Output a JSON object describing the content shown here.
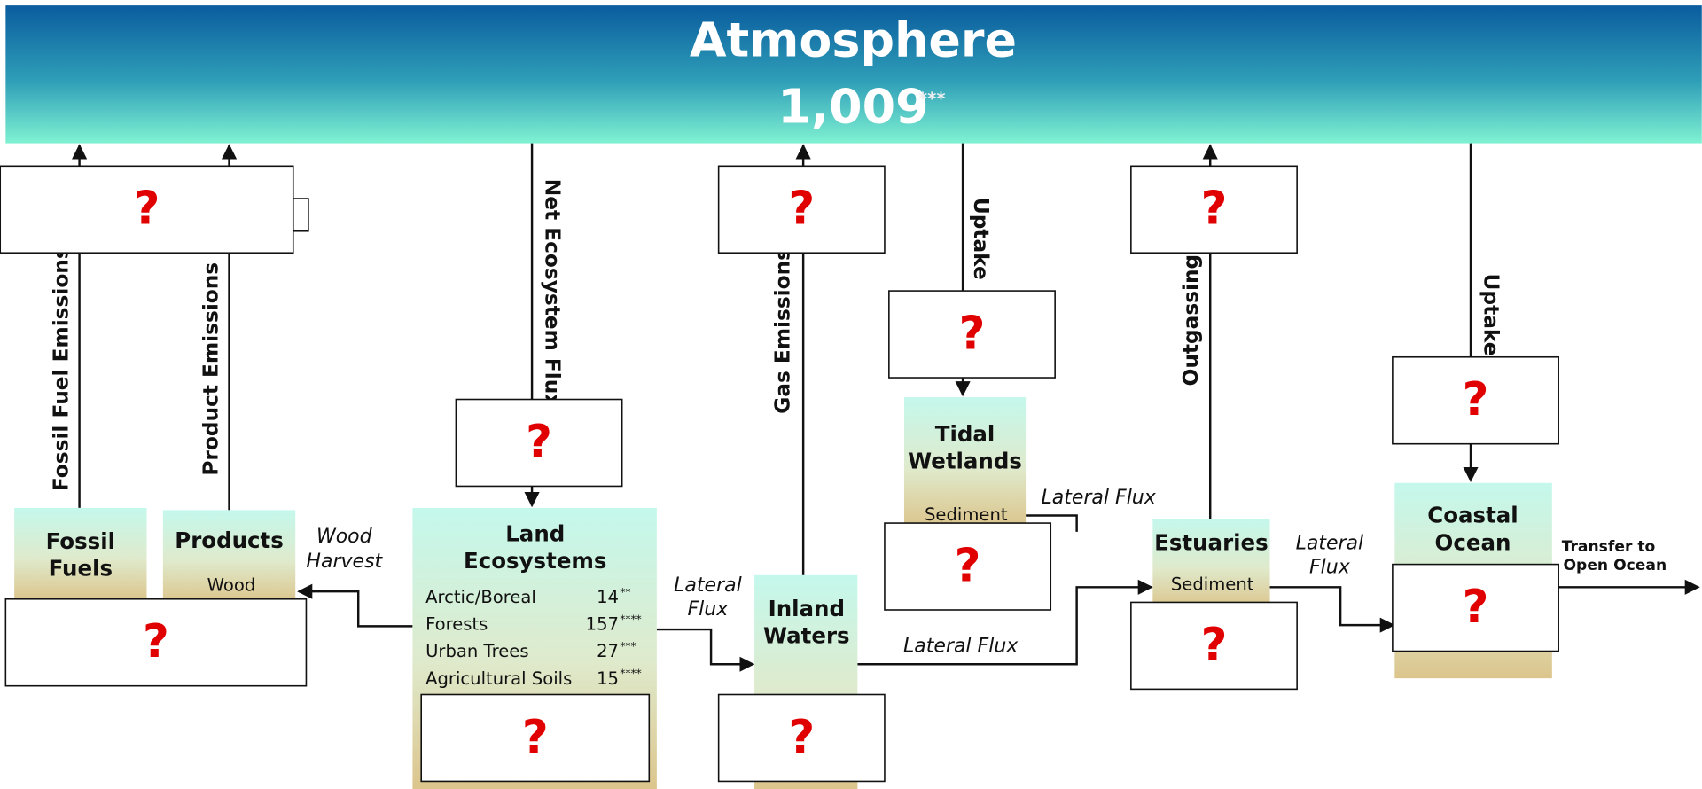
{
  "atmosphere": {
    "title": "Atmosphere",
    "value": "1,009",
    "note": "***"
  },
  "fluxes": {
    "fossil_fuel_emissions": "Fossil Fuel Emissions",
    "product_emissions": "Product Emissions",
    "net_ecosystem_flux": "Net Ecosystem Flux",
    "gas_emissions": "Gas Emissions",
    "wetland_uptake": "Uptake",
    "outgassing": "Outgassing",
    "ocean_uptake": "Uptake",
    "wood_harvest": [
      "Wood",
      "Harvest"
    ],
    "lateral_flux_land": [
      "Lateral",
      "Flux"
    ],
    "lateral_flux_inland": "Lateral Flux",
    "lateral_flux_wetlands": "Lateral Flux",
    "lateral_flux_estuaries": [
      "Lateral",
      "Flux"
    ],
    "transfer": [
      "Transfer to",
      "Open Ocean"
    ]
  },
  "nodes": {
    "fossil_fuels": [
      "Fossil",
      "Fuels"
    ],
    "products": {
      "title": "Products",
      "sub": "Wood"
    },
    "land": {
      "title": [
        "Land",
        "Ecosystems"
      ],
      "rows": [
        {
          "label": "Arctic/Boreal",
          "value": 14,
          "note": "**"
        },
        {
          "label": "Forests",
          "value": 157,
          "note": "****"
        },
        {
          "label": "Urban Trees",
          "value": 27,
          "note": "***"
        },
        {
          "label": "Agricultural Soils",
          "value": 15,
          "note": "****"
        }
      ]
    },
    "inland_waters": [
      "Inland",
      "Waters"
    ],
    "tidal_wetlands": {
      "title": [
        "Tidal",
        "Wetlands"
      ],
      "sub": "Sediment"
    },
    "estuaries": {
      "title": "Estuaries",
      "sub": "Sediment"
    },
    "coastal_ocean": [
      "Coastal",
      "Ocean"
    ]
  },
  "unknowns": [
    "?",
    "?",
    "?",
    "?",
    "?",
    "?",
    "?",
    "?",
    "?",
    "?",
    "?",
    "?"
  ]
}
